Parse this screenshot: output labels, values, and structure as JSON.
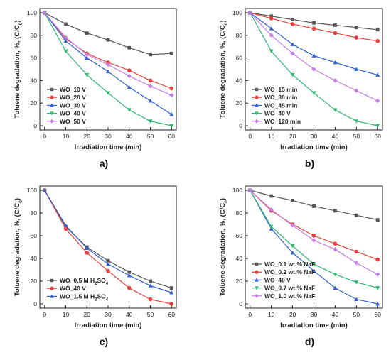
{
  "chart_data": [
    {
      "type": "line",
      "panel_label": "a)",
      "xlabel": "Irradiation time (min)",
      "ylabel": "Toluene degradation, %, (C/C",
      "ylabel_sub": "0",
      "ylabel_end": ")",
      "x": [
        0,
        10,
        20,
        30,
        40,
        50,
        60
      ],
      "xlim": [
        0,
        60
      ],
      "ylim": [
        0,
        100
      ],
      "xticks": [
        "0",
        "10",
        "20",
        "30",
        "40",
        "50",
        "60"
      ],
      "yticks": [
        "0",
        "20",
        "40",
        "60",
        "80",
        "100"
      ],
      "legend_position": "bottom-left",
      "series": [
        {
          "name": "WO_10 V",
          "color": "#555555",
          "marker": "square",
          "values": [
            100,
            90,
            82,
            76,
            69,
            63,
            64
          ]
        },
        {
          "name": "WO_20 V",
          "color": "#e8403a",
          "marker": "circle",
          "values": [
            100,
            77,
            64,
            56,
            49,
            40,
            33
          ]
        },
        {
          "name": "WO_30 V",
          "color": "#2f5fd0",
          "marker": "triangle-up",
          "values": [
            100,
            75,
            60,
            48,
            34,
            22,
            10
          ]
        },
        {
          "name": "WO_40 V",
          "color": "#2eb872",
          "marker": "triangle-down",
          "values": [
            100,
            66,
            45,
            29,
            14,
            4,
            0
          ]
        },
        {
          "name": "WO_50 V",
          "color": "#c77ce8",
          "marker": "diamond",
          "values": [
            100,
            78,
            63,
            54,
            44,
            35,
            27
          ]
        }
      ]
    },
    {
      "type": "line",
      "panel_label": "b)",
      "xlabel": "Irradiation time (min)",
      "ylabel": "Toluene degradation, %, (C/C",
      "ylabel_sub": "0",
      "ylabel_end": ")",
      "x": [
        0,
        10,
        20,
        30,
        40,
        50,
        60
      ],
      "xlim": [
        0,
        60
      ],
      "ylim": [
        0,
        100
      ],
      "xticks": [
        "0",
        "10",
        "20",
        "30",
        "40",
        "50",
        "60"
      ],
      "yticks": [
        "0",
        "20",
        "40",
        "60",
        "80",
        "100"
      ],
      "legend_position": "bottom-left",
      "series": [
        {
          "name": "WO_15 min",
          "color": "#555555",
          "marker": "square",
          "values": [
            100,
            97,
            94,
            91,
            89,
            87,
            85
          ]
        },
        {
          "name": "WO_30 min",
          "color": "#e8403a",
          "marker": "circle",
          "values": [
            100,
            95,
            90,
            86,
            82,
            78,
            75
          ]
        },
        {
          "name": "WO_45 min",
          "color": "#2f5fd0",
          "marker": "triangle-up",
          "values": [
            100,
            86,
            72,
            62,
            56,
            50,
            45
          ]
        },
        {
          "name": "WO_40 V",
          "color": "#2eb872",
          "marker": "triangle-down",
          "values": [
            100,
            66,
            45,
            29,
            14,
            4,
            0
          ]
        },
        {
          "name": "WO_120 min",
          "color": "#c77ce8",
          "marker": "diamond",
          "values": [
            100,
            80,
            64,
            50,
            40,
            31,
            22
          ]
        }
      ]
    },
    {
      "type": "line",
      "panel_label": "c)",
      "xlabel": "Irradiation time (min)",
      "ylabel": "Toluene degradation, %, (C/C",
      "ylabel_sub": "0",
      "ylabel_end": ")",
      "x": [
        0,
        10,
        20,
        30,
        40,
        50,
        60
      ],
      "xlim": [
        0,
        60
      ],
      "ylim": [
        0,
        100
      ],
      "xticks": [
        "0",
        "10",
        "20",
        "30",
        "40",
        "50",
        "60"
      ],
      "yticks": [
        "0",
        "20",
        "40",
        "60",
        "80",
        "100"
      ],
      "legend_position": "bottom-left",
      "series": [
        {
          "name": "WO_0.5 M H",
          "name_sub": "2",
          "name_end": "SO",
          "name_sub2": "4",
          "color": "#555555",
          "marker": "square",
          "values": [
            100,
            68,
            50,
            38,
            28,
            20,
            14
          ]
        },
        {
          "name": "WO_40 V",
          "color": "#e8403a",
          "marker": "circle",
          "values": [
            100,
            66,
            45,
            29,
            14,
            4,
            0
          ]
        },
        {
          "name": "WO_1.5 M H",
          "name_sub": "2",
          "name_end": "SO",
          "name_sub2": "4",
          "color": "#2f5fd0",
          "marker": "triangle-up",
          "values": [
            100,
            69,
            49,
            35,
            25,
            16,
            10
          ]
        }
      ]
    },
    {
      "type": "line",
      "panel_label": "d)",
      "xlabel": "Irradiation time (min)",
      "ylabel": "Toluene degradation, %, (C/C",
      "ylabel_sub": "0",
      "ylabel_end": ")",
      "x": [
        0,
        10,
        20,
        30,
        40,
        50,
        60
      ],
      "xlim": [
        0,
        60
      ],
      "ylim": [
        0,
        100
      ],
      "xticks": [
        "0",
        "10",
        "20",
        "30",
        "40",
        "50",
        "60"
      ],
      "yticks": [
        "0",
        "20",
        "40",
        "60",
        "80",
        "100"
      ],
      "legend_position": "bottom-left",
      "series": [
        {
          "name": "WO_0.1 wt.% NaF",
          "color": "#555555",
          "marker": "square",
          "values": [
            100,
            95,
            91,
            86,
            82,
            78,
            74
          ]
        },
        {
          "name": "WO_0.2 wt.% NaF",
          "color": "#e8403a",
          "marker": "circle",
          "values": [
            100,
            82,
            70,
            60,
            53,
            46,
            39
          ]
        },
        {
          "name": "WO_40 V",
          "color": "#2f5fd0",
          "marker": "triangle-up",
          "values": [
            100,
            66,
            45,
            29,
            14,
            4,
            0
          ]
        },
        {
          "name": "WO_0.7 wt.% NaF",
          "color": "#2eb872",
          "marker": "triangle-down",
          "values": [
            100,
            68,
            51,
            35,
            26,
            19,
            14
          ]
        },
        {
          "name": "WO_1.0 wt.% NaF",
          "color": "#c77ce8",
          "marker": "diamond",
          "values": [
            100,
            83,
            69,
            56,
            48,
            36,
            26
          ]
        }
      ]
    }
  ]
}
